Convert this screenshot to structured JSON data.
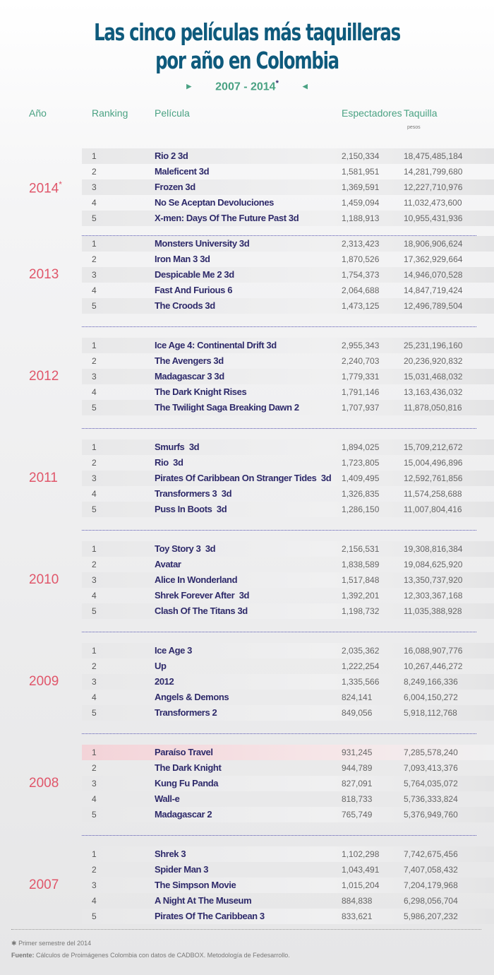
{
  "title_line1": "Las cinco películas más taquilleras",
  "title_line2": "por año en Colombia",
  "subtitle": "2007 - 2014",
  "subtitle_mark": "*",
  "headers": {
    "year": "Año",
    "ranking": "Ranking",
    "film": "Película",
    "viewers": "Espectadores",
    "boxoffice": "Taquilla",
    "boxoffice_unit": "pesos"
  },
  "groups": [
    {
      "year": "2014",
      "mark": "*",
      "rows": [
        [
          "1",
          "Rio 2 3d",
          "2,150,334",
          "18,475,485,184"
        ],
        [
          "2",
          "Maleficent 3d",
          "1,581,951",
          "14,281,799,680"
        ],
        [
          "3",
          "Frozen 3d",
          "1,369,591",
          "12,227,710,976"
        ],
        [
          "4",
          "No Se Aceptan Devoluciones",
          "1,459,094",
          "11,032,473,600"
        ],
        [
          "5",
          "X-men: Days Of The Future Past 3d",
          "1,188,913",
          "10,955,431,936"
        ]
      ]
    },
    {
      "year": "2013",
      "rows": [
        [
          "1",
          "Monsters University 3d",
          "2,313,423",
          "18,906,906,624"
        ],
        [
          "2",
          "Iron Man 3 3d",
          "1,870,526",
          "17,362,929,664"
        ],
        [
          "3",
          "Despicable Me 2 3d",
          "1,754,373",
          "14,946,070,528"
        ],
        [
          "4",
          "Fast And Furious 6",
          "2,064,688",
          "14,847,719,424"
        ],
        [
          "5",
          "The Croods 3d",
          "1,473,125",
          "12,496,789,504"
        ]
      ]
    },
    {
      "year": "2012",
      "rows": [
        [
          "1",
          "Ice Age 4: Continental Drift 3d",
          "2,955,343",
          "25,231,196,160"
        ],
        [
          "2",
          "The Avengers 3d",
          "2,240,703",
          "20,236,920,832"
        ],
        [
          "3",
          "Madagascar 3 3d",
          "1,779,331",
          "15,031,468,032"
        ],
        [
          "4",
          "The Dark Knight Rises",
          "1,791,146",
          "13,163,436,032"
        ],
        [
          "5",
          "The Twilight Saga Breaking Dawn 2",
          "1,707,937",
          "11,878,050,816"
        ]
      ]
    },
    {
      "year": "2011",
      "rows": [
        [
          "1",
          "Smurfs  3d",
          "1,894,025",
          "15,709,212,672"
        ],
        [
          "2",
          "Rio  3d",
          "1,723,805",
          "15,004,496,896"
        ],
        [
          "3",
          "Pirates Of Caribbean On Stranger Tides  3d",
          "1,409,495",
          "12,592,761,856"
        ],
        [
          "4",
          "Transformers 3  3d",
          "1,326,835",
          "11,574,258,688"
        ],
        [
          "5",
          "Puss In Boots  3d",
          "1,286,150",
          "11,007,804,416"
        ]
      ]
    },
    {
      "year": "2010",
      "rows": [
        [
          "1",
          "Toy Story 3  3d",
          "2,156,531",
          "19,308,816,384"
        ],
        [
          "2",
          "Avatar",
          "1,838,589",
          "19,084,625,920"
        ],
        [
          "3",
          "Alice In Wonderland",
          "1,517,848",
          "13,350,737,920"
        ],
        [
          "4",
          "Shrek Forever After  3d",
          "1,392,201",
          "12,303,367,168"
        ],
        [
          "5",
          "Clash Of The Titans 3d",
          "1,198,732",
          "11,035,388,928"
        ]
      ]
    },
    {
      "year": "2009",
      "rows": [
        [
          "1",
          "Ice Age 3",
          "2,035,362",
          "16,088,907,776"
        ],
        [
          "2",
          "Up",
          "1,222,254",
          "10,267,446,272"
        ],
        [
          "3",
          "2012",
          "1,335,566",
          "8,249,166,336"
        ],
        [
          "4",
          "Angels & Demons",
          "824,141",
          "6,004,150,272"
        ],
        [
          "5",
          "Transformers 2",
          "849,056",
          "5,918,112,768"
        ]
      ]
    },
    {
      "year": "2008",
      "highlight_row": 0,
      "rows": [
        [
          "1",
          "Paraíso Travel",
          "931,245",
          "7,285,578,240"
        ],
        [
          "2",
          "The Dark Knight",
          "944,789",
          "7,093,413,376"
        ],
        [
          "3",
          "Kung Fu Panda",
          "827,091",
          "5,764,035,072"
        ],
        [
          "4",
          "Wall-e",
          "818,733",
          "5,736,333,824"
        ],
        [
          "5",
          "Madagascar 2",
          "765,749",
          "5,376,949,760"
        ]
      ]
    },
    {
      "year": "2007",
      "rows": [
        [
          "1",
          "Shrek 3",
          "1,102,298",
          "7,742,675,456"
        ],
        [
          "2",
          "Spider Man 3",
          "1,043,491",
          "7,407,058,432"
        ],
        [
          "3",
          "The Simpson Movie",
          "1,015,204",
          "7,204,179,968"
        ],
        [
          "4",
          "A Night At The Museum",
          "884,838",
          "6,298,056,704"
        ],
        [
          "5",
          "Pirates Of The Caribbean 3",
          "833,621",
          "5,986,207,232"
        ]
      ]
    }
  ],
  "footnote_mark": "✱",
  "footnote": "Primer semestre del 2014",
  "source_label": "Fuente:",
  "source": "Cálculos de Proimágenes Colombia con datos de CADBOX. Metodología de Fedesarrollo."
}
